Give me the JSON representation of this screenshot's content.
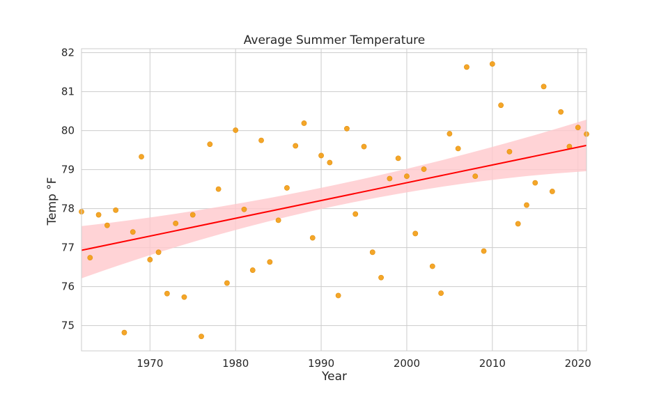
{
  "chart_data": {
    "type": "scatter",
    "title": "Average Summer Temperature",
    "xlabel": "Year",
    "ylabel": "Temp °F",
    "xlim": [
      1962,
      2021
    ],
    "ylim": [
      74.35,
      82.1
    ],
    "xticks": [
      1970,
      1980,
      1990,
      2000,
      2010,
      2020
    ],
    "yticks": [
      75,
      76,
      77,
      78,
      79,
      80,
      81,
      82
    ],
    "grid": true,
    "colors": {
      "points": "#f39c12",
      "line": "#ff0000",
      "band": "#ffc8cc",
      "grid": "#cccccc"
    },
    "series": [
      {
        "x": [
          1962,
          1963,
          1964,
          1965,
          1966,
          1967,
          1968,
          1969,
          1970,
          1971,
          1972,
          1973,
          1974,
          1975,
          1976,
          1977,
          1978,
          1979,
          1980,
          1981,
          1982,
          1983,
          1984,
          1985,
          1986,
          1987,
          1988,
          1989,
          1990,
          1991,
          1992,
          1993,
          1994,
          1995,
          1996,
          1997,
          1998,
          1999,
          2000,
          2001,
          2002,
          2003,
          2004,
          2005,
          2006,
          2007,
          2008,
          2009,
          2010,
          2011,
          2012,
          2013,
          2014,
          2015,
          2016,
          2017,
          2018,
          2019,
          2020,
          2021
        ],
        "y": [
          77.92,
          76.74,
          77.84,
          77.57,
          77.96,
          74.82,
          77.4,
          79.33,
          76.69,
          76.88,
          75.82,
          77.62,
          75.73,
          77.84,
          74.72,
          79.65,
          78.5,
          76.09,
          80.01,
          77.98,
          76.42,
          79.75,
          76.63,
          77.7,
          78.53,
          79.61,
          80.19,
          77.25,
          79.36,
          79.18,
          75.77,
          80.05,
          77.86,
          79.59,
          76.88,
          76.23,
          78.77,
          79.29,
          78.83,
          77.36,
          79.01,
          76.52,
          75.83,
          79.92,
          79.54,
          81.63,
          78.83,
          76.91,
          81.71,
          80.65,
          79.46,
          77.61,
          78.09,
          78.66,
          81.13,
          78.44,
          80.48,
          79.59,
          80.08,
          79.91
        ]
      }
    ],
    "regression": {
      "x": [
        1962,
        2021
      ],
      "y": [
        76.93,
        79.62
      ],
      "ci_lower": [
        76.21,
        78.96
      ],
      "ci_upper": [
        77.55,
        80.28
      ],
      "ci_mid_x": 1991.5,
      "ci_mid_lower": [
        78.06
      ],
      "ci_mid_upper": [
        78.6
      ]
    }
  }
}
